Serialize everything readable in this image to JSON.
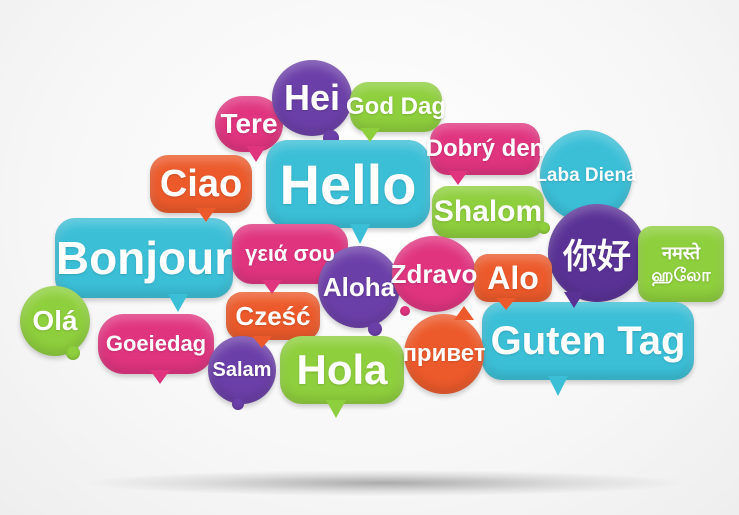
{
  "colors": {
    "blue": "#3bbfd7",
    "green": "#8ecf3d",
    "magenta": "#e0347f",
    "purple": "#6b3fa8",
    "orange": "#ec5a2b",
    "deep_purple": "#5a3296"
  },
  "words": {
    "hei": "Hei",
    "tere": "Tere",
    "god_dag": "God Dag",
    "dobry_den": "Dobrý den",
    "laba_diena": "Laba Diena",
    "ciao": "Ciao",
    "hello": "Hello",
    "shalom": "Shalom",
    "nihao": "你好",
    "namaste": "नमस्ते",
    "tamil": "ஹலோ",
    "bonjour": "Bonjour",
    "geia_sou": "γειά σου",
    "aloha": "Aloha",
    "zdravo": "Zdravo",
    "alo": "Alo",
    "ola": "Olá",
    "goeiedag": "Goeiedag",
    "czesc": "Cześć",
    "guten_tag": "Guten Tag",
    "salam": "Salam",
    "hola": "Hola",
    "privet": "привет"
  }
}
